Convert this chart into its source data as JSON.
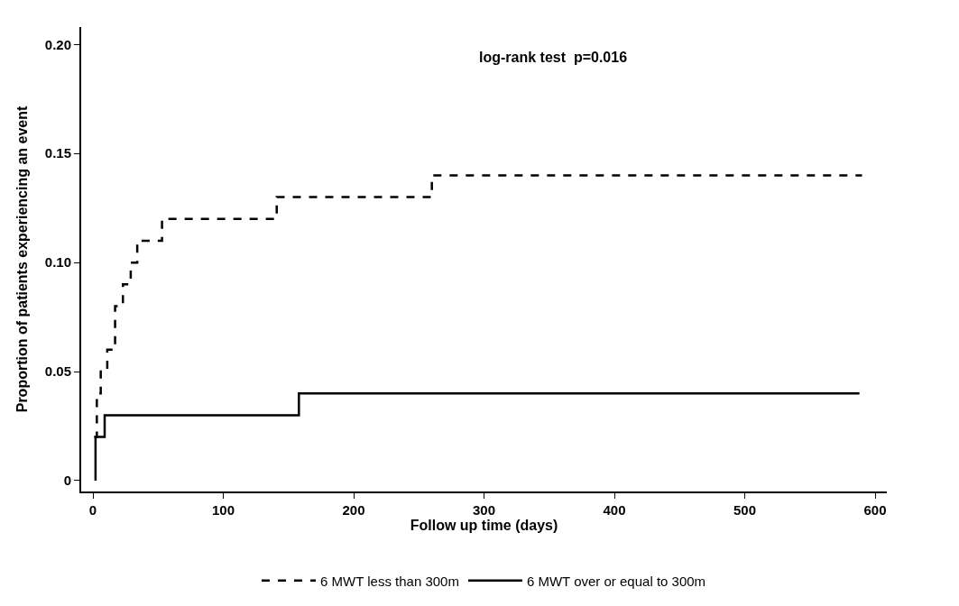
{
  "chart_data": {
    "type": "step",
    "xlabel": "Follow up time (days)",
    "ylabel": "Proportion of patients experiencing an event",
    "annotations": [
      "log-rank test  p=0.016"
    ],
    "series": [
      {
        "name": "6 MWT less than 300m",
        "color": "#000000",
        "line_style": "dashed",
        "x": [
          1,
          3,
          6,
          11,
          17,
          23,
          29,
          34,
          53,
          141,
          260,
          590
        ],
        "values": [
          0.02,
          0.04,
          0.05,
          0.06,
          0.08,
          0.09,
          0.1,
          0.11,
          0.12,
          0.13,
          0.14,
          0.14
        ]
      },
      {
        "name": "6 MWT over or equal to 300m",
        "color": "#000000",
        "line_style": "solid",
        "x": [
          2,
          2,
          9,
          158,
          588
        ],
        "values": [
          0,
          0.02,
          0.03,
          0.04,
          0.04
        ]
      }
    ],
    "xlim": [
      -9,
      609
    ],
    "ylim": [
      -0.005,
      0.208
    ],
    "xticks": [
      0,
      100,
      200,
      300,
      400,
      500,
      600
    ],
    "yticks": [
      0,
      0.05,
      {
        "value": 0.1,
        "label": "0.10"
      },
      0.15,
      {
        "value": 0.2,
        "label": "0.20"
      }
    ],
    "legend": "bottom",
    "marker": "none"
  }
}
